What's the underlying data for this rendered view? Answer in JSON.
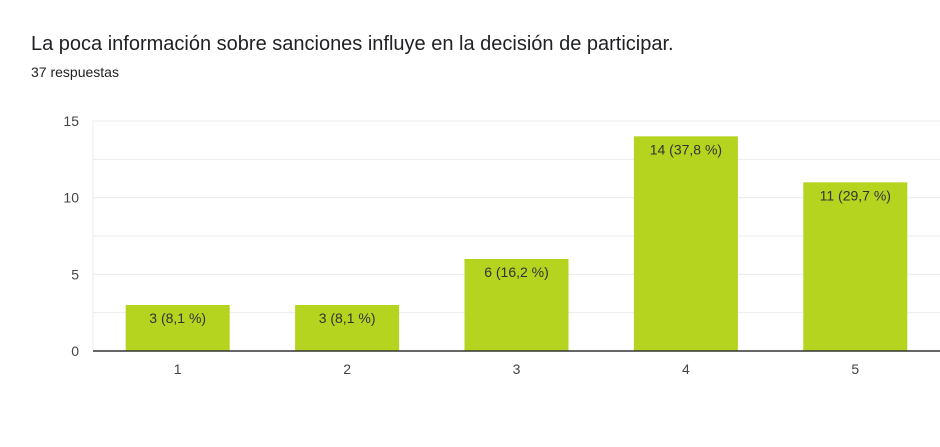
{
  "header": {
    "title": "La poca información sobre sanciones influye en la decisión de participar.",
    "responses": "37 respuestas"
  },
  "chart_data": {
    "type": "bar",
    "title": "La poca información sobre sanciones influye en la decisión de participar.",
    "categories": [
      "1",
      "2",
      "3",
      "4",
      "5"
    ],
    "values": [
      3,
      3,
      6,
      14,
      11
    ],
    "data_labels": [
      "3 (8,1 %)",
      "3 (8,1 %)",
      "6 (16,2 %)",
      "14 (37,8 %)",
      "11 (29,7 %)"
    ],
    "yticks": [
      0,
      5,
      10,
      15
    ],
    "ylim": [
      0,
      15
    ],
    "grid": true,
    "xlabel": "",
    "ylabel": "",
    "colors": {
      "bar": "#b5d41f",
      "grid": "#ebebeb",
      "axis": "#333333"
    }
  }
}
